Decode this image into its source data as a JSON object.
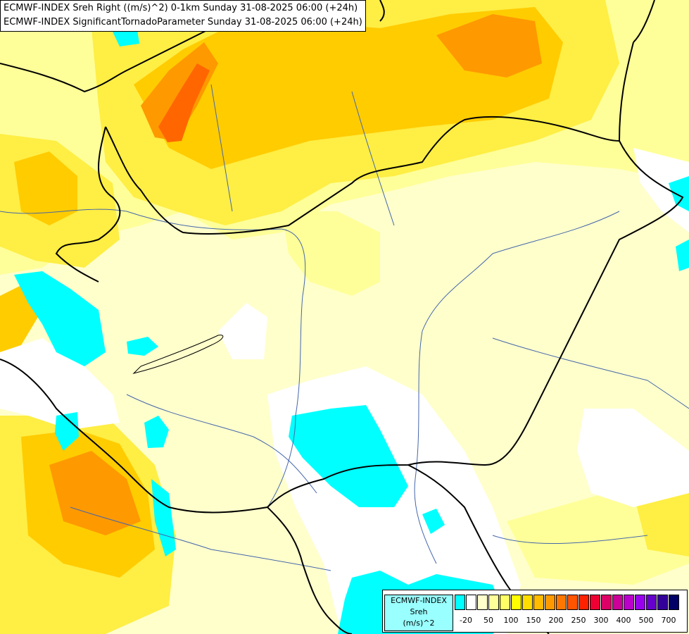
{
  "titles": {
    "line1": "ECMWF-INDEX Sreh Right ((m/s)^2) 0-1km Sunday 31-08-2025 06:00 (+24h)",
    "line2": "ECMWF-INDEX SignificantTornadoParameter Sunday 31-08-2025 06:00 (+24h)"
  },
  "legend": {
    "label_lines": [
      "ECMWF-INDEX",
      "Sreh",
      "(m/s)^2"
    ],
    "colors": [
      "#00ffff",
      "#ffffff",
      "#ffffcc",
      "#ffff99",
      "#ffff66",
      "#ffff00",
      "#ffdd00",
      "#ffbb00",
      "#ff9900",
      "#ff7700",
      "#ff5500",
      "#ff2200",
      "#ee0033",
      "#dd0066",
      "#cc0099",
      "#bb00cc",
      "#9900ee",
      "#6600cc",
      "#330099",
      "#000066"
    ],
    "ticks": [
      "-20",
      "50",
      "100",
      "150",
      "200",
      "250",
      "300",
      "400",
      "500",
      "700"
    ]
  },
  "map_colors": {
    "background": "#ffffcc",
    "light_yellow": "#ffff99",
    "yellow": "#ffee44",
    "gold": "#ffcc00",
    "orange": "#ff9900",
    "dark_orange": "#ff6600",
    "cyan": "#00ffff",
    "white": "#ffffff",
    "border": "#000000",
    "river": "#4466aa"
  }
}
